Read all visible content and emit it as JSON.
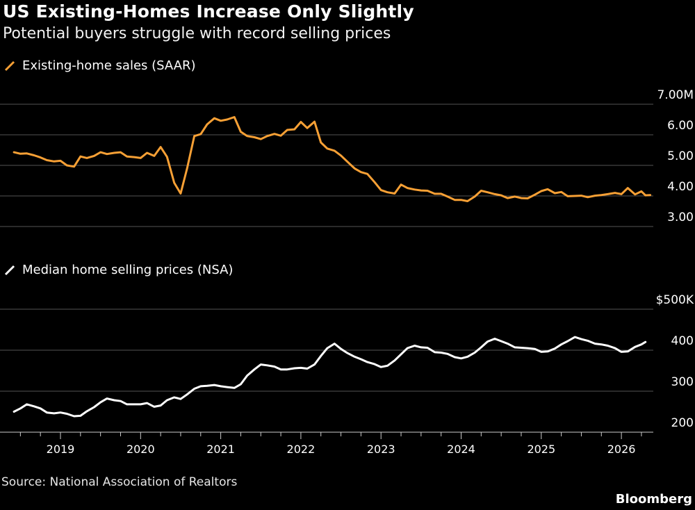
{
  "title": "US Existing-Homes Increase Only Slightly",
  "subtitle": "Potential buyers struggle with record selling prices",
  "source": "Source: National Association of Realtors",
  "brand": "Bloomberg",
  "colors": {
    "sales": "#f7a035",
    "prices": "#ffffff",
    "grid": "#555555",
    "background": "#000000"
  },
  "chart_data": [
    {
      "type": "line",
      "legend": "Existing-home sales (SAAR)",
      "y_ticks": [
        "7.00M",
        "6.00",
        "5.00",
        "4.00",
        "3.00"
      ],
      "y_tick_values": [
        7,
        6,
        5,
        4,
        3
      ],
      "ylim": [
        3,
        7
      ],
      "x_range": [
        2018.4,
        2026.3
      ],
      "series": [
        {
          "points": [
            [
              2018.42,
              5.43
            ],
            [
              2018.5,
              5.38
            ],
            [
              2018.58,
              5.39
            ],
            [
              2018.67,
              5.33
            ],
            [
              2018.75,
              5.26
            ],
            [
              2018.83,
              5.17
            ],
            [
              2018.92,
              5.13
            ],
            [
              2019.0,
              5.15
            ],
            [
              2019.08,
              5.0
            ],
            [
              2019.17,
              4.96
            ],
            [
              2019.25,
              5.29
            ],
            [
              2019.33,
              5.24
            ],
            [
              2019.42,
              5.31
            ],
            [
              2019.5,
              5.43
            ],
            [
              2019.58,
              5.37
            ],
            [
              2019.67,
              5.41
            ],
            [
              2019.75,
              5.43
            ],
            [
              2019.83,
              5.29
            ],
            [
              2019.92,
              5.27
            ],
            [
              2020.0,
              5.24
            ],
            [
              2020.08,
              5.41
            ],
            [
              2020.17,
              5.31
            ],
            [
              2020.25,
              5.6
            ],
            [
              2020.33,
              5.28
            ],
            [
              2020.42,
              4.43
            ],
            [
              2020.5,
              4.08
            ],
            [
              2020.58,
              4.9
            ],
            [
              2020.67,
              5.96
            ],
            [
              2020.75,
              6.02
            ],
            [
              2020.83,
              6.34
            ],
            [
              2020.92,
              6.54
            ],
            [
              2021.0,
              6.46
            ],
            [
              2021.08,
              6.5
            ],
            [
              2021.17,
              6.58
            ],
            [
              2021.25,
              6.1
            ],
            [
              2021.33,
              5.96
            ],
            [
              2021.42,
              5.92
            ],
            [
              2021.5,
              5.86
            ],
            [
              2021.58,
              5.96
            ],
            [
              2021.67,
              6.03
            ],
            [
              2021.75,
              5.97
            ],
            [
              2021.83,
              6.16
            ],
            [
              2021.92,
              6.18
            ],
            [
              2022.0,
              6.42
            ],
            [
              2022.08,
              6.22
            ],
            [
              2022.17,
              6.43
            ],
            [
              2022.25,
              5.75
            ],
            [
              2022.33,
              5.55
            ],
            [
              2022.42,
              5.48
            ],
            [
              2022.5,
              5.32
            ],
            [
              2022.58,
              5.12
            ],
            [
              2022.67,
              4.9
            ],
            [
              2022.75,
              4.78
            ],
            [
              2022.83,
              4.72
            ],
            [
              2022.92,
              4.45
            ],
            [
              2023.0,
              4.19
            ],
            [
              2023.08,
              4.12
            ],
            [
              2023.17,
              4.08
            ],
            [
              2023.25,
              4.37
            ],
            [
              2023.33,
              4.26
            ],
            [
              2023.42,
              4.21
            ],
            [
              2023.5,
              4.18
            ],
            [
              2023.58,
              4.17
            ],
            [
              2023.67,
              4.07
            ],
            [
              2023.75,
              4.07
            ],
            [
              2023.83,
              3.98
            ],
            [
              2023.92,
              3.87
            ],
            [
              2024.0,
              3.87
            ],
            [
              2024.08,
              3.83
            ],
            [
              2024.17,
              3.98
            ],
            [
              2024.25,
              4.17
            ],
            [
              2024.33,
              4.12
            ],
            [
              2024.42,
              4.06
            ],
            [
              2024.5,
              4.02
            ],
            [
              2024.58,
              3.93
            ],
            [
              2024.67,
              3.98
            ],
            [
              2024.75,
              3.93
            ],
            [
              2024.83,
              3.92
            ],
            [
              2024.92,
              4.04
            ],
            [
              2025.0,
              4.16
            ],
            [
              2025.08,
              4.22
            ],
            [
              2025.17,
              4.09
            ],
            [
              2025.25,
              4.13
            ],
            [
              2025.33,
              3.99
            ],
            [
              2025.42,
              4.0
            ],
            [
              2025.5,
              4.01
            ],
            [
              2025.58,
              3.96
            ],
            [
              2025.67,
              4.01
            ],
            [
              2025.75,
              4.03
            ],
            [
              2025.83,
              4.06
            ],
            [
              2025.92,
              4.1
            ],
            [
              2026.0,
              4.06
            ],
            [
              2026.08,
              4.26
            ],
            [
              2026.17,
              4.05
            ],
            [
              2026.25,
              4.15
            ],
            [
              2026.3,
              4.02
            ],
            [
              2026.36,
              4.03
            ]
          ]
        }
      ]
    },
    {
      "type": "line",
      "legend": "Median home selling prices (NSA)",
      "y_ticks": [
        "$500K",
        "400",
        "300",
        "200"
      ],
      "y_tick_values": [
        500,
        400,
        300,
        200
      ],
      "ylim": [
        200,
        500
      ],
      "x_range": [
        2018.4,
        2026.3
      ],
      "series": [
        {
          "points": [
            [
              2018.42,
              250
            ],
            [
              2018.5,
              258
            ],
            [
              2018.58,
              268
            ],
            [
              2018.67,
              263
            ],
            [
              2018.75,
              258
            ],
            [
              2018.83,
              248
            ],
            [
              2018.92,
              246
            ],
            [
              2019.0,
              248
            ],
            [
              2019.08,
              245
            ],
            [
              2019.17,
              239
            ],
            [
              2019.25,
              240
            ],
            [
              2019.33,
              251
            ],
            [
              2019.42,
              261
            ],
            [
              2019.5,
              273
            ],
            [
              2019.58,
              282
            ],
            [
              2019.67,
              278
            ],
            [
              2019.75,
              276
            ],
            [
              2019.83,
              268
            ],
            [
              2019.92,
              268
            ],
            [
              2020.0,
              268
            ],
            [
              2020.08,
              271
            ],
            [
              2020.17,
              262
            ],
            [
              2020.25,
              265
            ],
            [
              2020.33,
              278
            ],
            [
              2020.42,
              285
            ],
            [
              2020.5,
              281
            ],
            [
              2020.58,
              292
            ],
            [
              2020.67,
              306
            ],
            [
              2020.75,
              312
            ],
            [
              2020.83,
              313
            ],
            [
              2020.92,
              315
            ],
            [
              2021.0,
              312
            ],
            [
              2021.08,
              310
            ],
            [
              2021.17,
              308
            ],
            [
              2021.25,
              317
            ],
            [
              2021.33,
              338
            ],
            [
              2021.42,
              353
            ],
            [
              2021.5,
              365
            ],
            [
              2021.58,
              363
            ],
            [
              2021.67,
              360
            ],
            [
              2021.75,
              353
            ],
            [
              2021.83,
              353
            ],
            [
              2021.92,
              356
            ],
            [
              2022.0,
              357
            ],
            [
              2022.08,
              355
            ],
            [
              2022.17,
              365
            ],
            [
              2022.25,
              386
            ],
            [
              2022.33,
              405
            ],
            [
              2022.42,
              416
            ],
            [
              2022.5,
              403
            ],
            [
              2022.58,
              393
            ],
            [
              2022.67,
              384
            ],
            [
              2022.75,
              378
            ],
            [
              2022.83,
              371
            ],
            [
              2022.92,
              366
            ],
            [
              2023.0,
              359
            ],
            [
              2023.08,
              362
            ],
            [
              2023.17,
              375
            ],
            [
              2023.25,
              390
            ],
            [
              2023.33,
              405
            ],
            [
              2023.42,
              411
            ],
            [
              2023.5,
              407
            ],
            [
              2023.58,
              406
            ],
            [
              2023.67,
              395
            ],
            [
              2023.75,
              394
            ],
            [
              2023.83,
              391
            ],
            [
              2023.92,
              383
            ],
            [
              2024.0,
              380
            ],
            [
              2024.08,
              384
            ],
            [
              2024.17,
              394
            ],
            [
              2024.25,
              407
            ],
            [
              2024.33,
              421
            ],
            [
              2024.42,
              428
            ],
            [
              2024.5,
              422
            ],
            [
              2024.58,
              416
            ],
            [
              2024.67,
              407
            ],
            [
              2024.75,
              406
            ],
            [
              2024.83,
              405
            ],
            [
              2024.92,
              403
            ],
            [
              2025.0,
              396
            ],
            [
              2025.08,
              397
            ],
            [
              2025.17,
              404
            ],
            [
              2025.25,
              414
            ],
            [
              2025.33,
              422
            ],
            [
              2025.42,
              432
            ],
            [
              2025.5,
              427
            ],
            [
              2025.58,
              423
            ],
            [
              2025.67,
              416
            ],
            [
              2025.75,
              414
            ],
            [
              2025.83,
              411
            ],
            [
              2025.92,
              405
            ],
            [
              2026.0,
              396
            ],
            [
              2026.08,
              397
            ],
            [
              2026.17,
              408
            ],
            [
              2026.25,
              414
            ],
            [
              2026.3,
              420
            ]
          ]
        }
      ]
    }
  ],
  "x_ticks": [
    "2019",
    "2020",
    "2021",
    "2022",
    "2023",
    "2024",
    "2025",
    "2026"
  ]
}
